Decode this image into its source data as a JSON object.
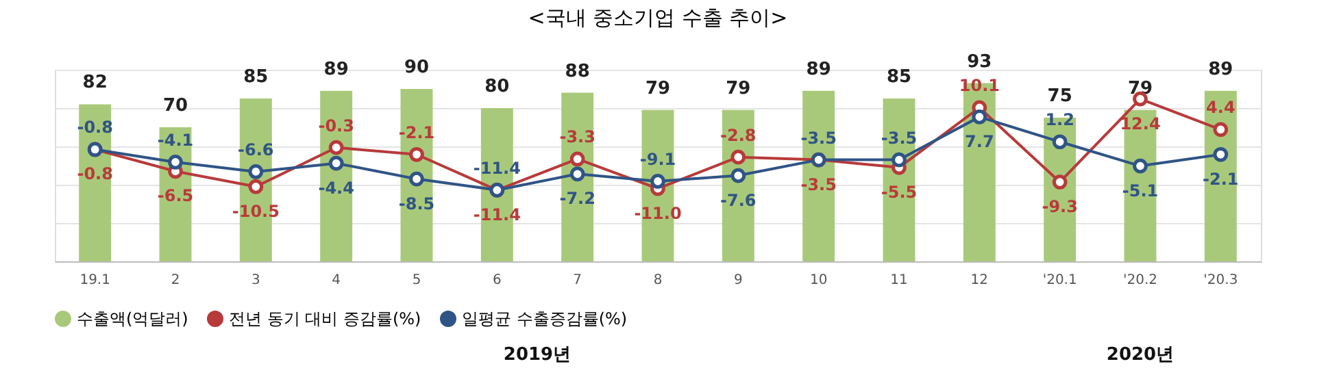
{
  "chart_data": {
    "type": "bar",
    "title": "<국내 중소기업 수출 추이>",
    "categories": [
      "19.1",
      "2",
      "3",
      "4",
      "5",
      "6",
      "7",
      "8",
      "9",
      "10",
      "11",
      "12",
      "'20.1",
      "'20.2",
      "'20.3"
    ],
    "series": [
      {
        "name": "수출액(억달러)",
        "color": "#a9c97a",
        "values": [
          82,
          70,
          85,
          89,
          90,
          80,
          88,
          79,
          79,
          89,
          85,
          93,
          75,
          79,
          89
        ]
      },
      {
        "name": "전년 동기 대비 증감률(%)",
        "type": "line",
        "axis": "y2",
        "color": "#b83a3a",
        "values": [
          -0.8,
          -6.5,
          -10.5,
          -0.3,
          -2.1,
          -11.4,
          -3.3,
          -11.0,
          -2.8,
          -3.5,
          -5.5,
          10.1,
          -9.3,
          12.4,
          4.4
        ],
        "value_labels": [
          "-0.8",
          "-6.5",
          "-10.5",
          "-0.3",
          "-2.1",
          "-11.4",
          "-3.3",
          "-11.0",
          "-2.8",
          "-3.5",
          "-5.5",
          "10.1",
          "-9.3",
          "12.4",
          "4.4"
        ]
      },
      {
        "name": "일평균 수출증감률(%)",
        "type": "line",
        "axis": "y2",
        "color": "#2f5486",
        "values": [
          -0.8,
          -4.1,
          -6.6,
          -4.4,
          -8.5,
          -11.4,
          -7.2,
          -9.1,
          -7.6,
          -3.5,
          -3.5,
          7.7,
          1.2,
          -5.1,
          -2.1
        ]
      }
    ],
    "ylim": [
      0,
      100
    ],
    "yticks": [
      {
        "value": 0,
        "label": null
      },
      {
        "value": 20,
        "label": null
      },
      {
        "value": 40,
        "label": null
      },
      {
        "value": 60,
        "label": null
      },
      {
        "value": 80,
        "label": null
      },
      {
        "value": 100,
        "label": null
      }
    ],
    "y2lim": [
      -30,
      20
    ],
    "tick_labels": "x",
    "grid": "y",
    "marker": "circle",
    "line_style": "solid",
    "data_labels": true,
    "legend": "bottom",
    "annotations": [
      "2019년",
      "2020년"
    ]
  }
}
